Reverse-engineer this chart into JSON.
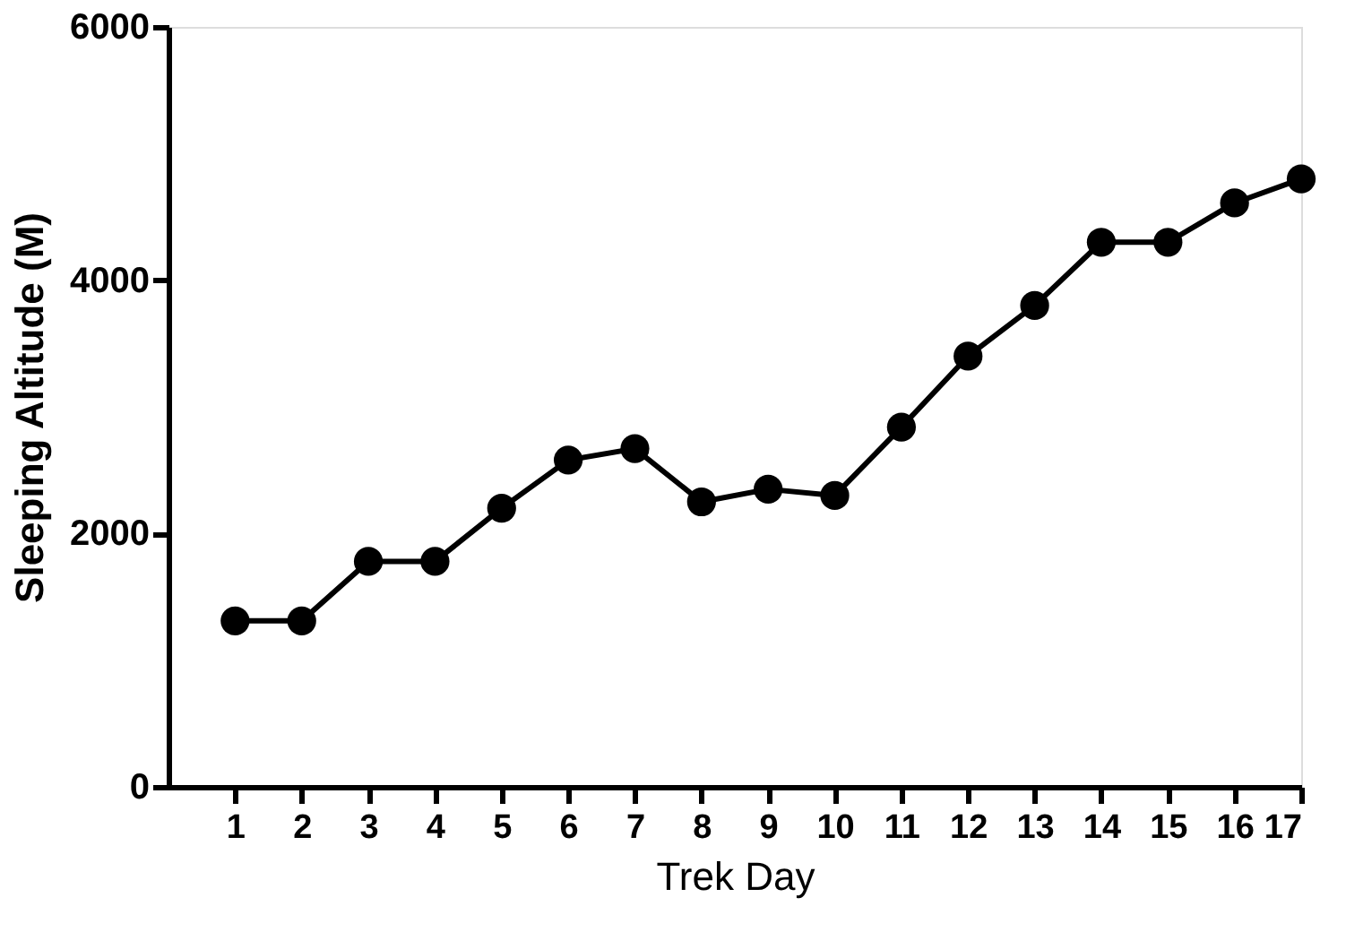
{
  "chart_data": {
    "type": "line",
    "xlabel": "Trek Day",
    "ylabel": "Sleeping Altitude (M)",
    "x": [
      1,
      2,
      3,
      4,
      5,
      6,
      7,
      8,
      9,
      10,
      11,
      12,
      13,
      14,
      15,
      16,
      17
    ],
    "values": [
      1310,
      1310,
      1780,
      1780,
      2200,
      2580,
      2670,
      2250,
      2350,
      2300,
      2840,
      3400,
      3800,
      4300,
      4300,
      4610,
      4800
    ],
    "color": "#000000",
    "xlim": [
      0,
      17
    ],
    "xticks": [
      1,
      2,
      3,
      4,
      5,
      6,
      7,
      8,
      9,
      10,
      11,
      12,
      13,
      14,
      15,
      16,
      17
    ],
    "ylim": [
      0,
      6000
    ],
    "yticks": [
      0,
      2000,
      4000,
      6000
    ],
    "grid": false,
    "marker": "circle",
    "line_style": "solid"
  }
}
